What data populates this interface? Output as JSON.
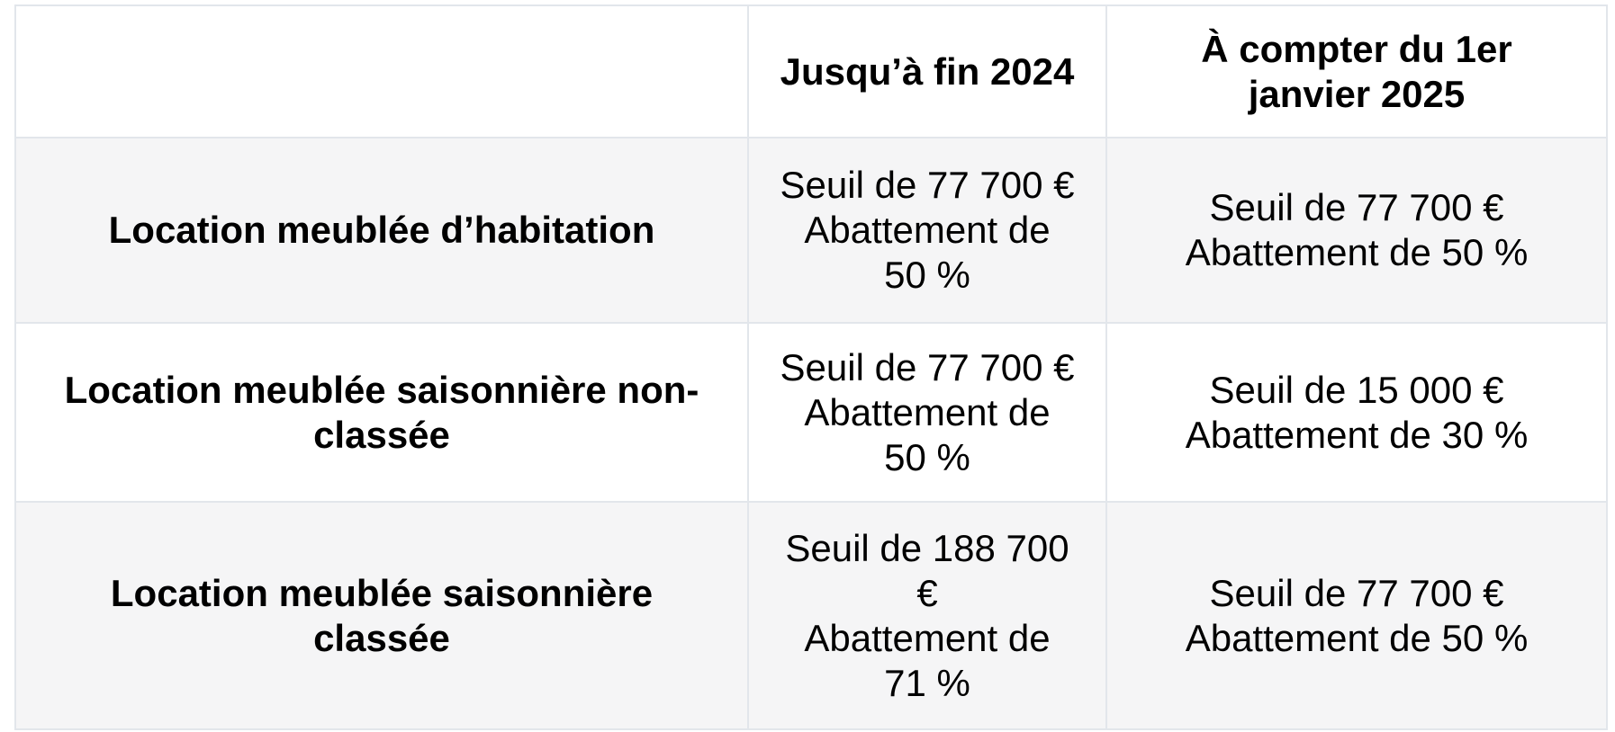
{
  "colors": {
    "background": "#ffffff",
    "stripe_row": "#f5f5f6",
    "border": "#e2e6eb",
    "text": "#000000"
  },
  "chart_data": {
    "type": "table",
    "columns": [
      "",
      "Jusqu’à fin 2024",
      "À compter du 1er janvier 2025"
    ],
    "rows": [
      {
        "category": "Location meublée d’habitation",
        "jusqua_fin_2024": {
          "seuil": "77 700 €",
          "abattement": "50 %"
        },
        "a_compter_du_1er_janvier_2025": {
          "seuil": "77 700 €",
          "abattement": "50 %"
        }
      },
      {
        "category": "Location meublée saisonnière non-classée",
        "jusqua_fin_2024": {
          "seuil": "77 700 €",
          "abattement": "50 %"
        },
        "a_compter_du_1er_janvier_2025": {
          "seuil": "15 000 €",
          "abattement": "30 %"
        }
      },
      {
        "category": "Location meublée saisonnière classée",
        "jusqua_fin_2024": {
          "seuil": "188 700 €",
          "abattement": "71 %"
        },
        "a_compter_du_1er_janvier_2025": {
          "seuil": "77 700 €",
          "abattement": "50 %"
        }
      }
    ],
    "layout": {
      "grid": true,
      "striped_rows": true,
      "stripe_pattern": [
        "stripe",
        "plain",
        "stripe"
      ],
      "header_background": "#ffffff"
    }
  },
  "display": {
    "header_cells": [
      [],
      [
        "Jusqu’à fin 2024"
      ],
      [
        "À compter du 1er",
        "janvier 2025"
      ]
    ],
    "body_rows": [
      [
        [
          "Location meublée d’habitation"
        ],
        [
          "Seuil de 77 700 €",
          "Abattement de",
          "50 %"
        ],
        [
          "Seuil de 77 700 €",
          "Abattement de 50 %"
        ]
      ],
      [
        [
          "Location meublée saisonnière non-",
          "classée"
        ],
        [
          "Seuil de 77 700 €",
          "Abattement de",
          "50 %"
        ],
        [
          "Seuil de 15 000 €",
          "Abattement de 30 %"
        ]
      ],
      [
        [
          "Location meublée saisonnière",
          "classée"
        ],
        [
          "Seuil de 188 700",
          "€",
          "Abattement de",
          "71 %"
        ],
        [
          "Seuil de 77 700 €",
          "Abattement de 50 %"
        ]
      ]
    ]
  }
}
